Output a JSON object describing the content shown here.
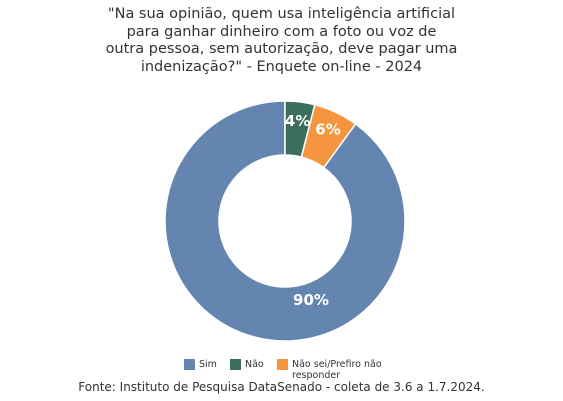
{
  "title_lines": [
    "\"Na sua opinião, quem usa inteligência artificial",
    "para ganhar dinheiro com a foto ou voz de",
    "outra pessoa, sem autorização, deve pagar uma",
    "indenização?\" - Enquete on-line - 2024"
  ],
  "source": "Fonte: Instituto de Pesquisa DataSenado - coleta de 3.6 a 1.7.2024.",
  "chart_data": {
    "type": "pie",
    "donut": true,
    "title": "\"Na sua opinião, quem usa inteligência artificial para ganhar dinheiro com a foto ou voz de outra pessoa, sem autorização, deve pagar uma indenização?\" - Enquete on-line - 2024",
    "categories": [
      "Sim",
      "Não",
      "Não sei/Prefiro não responder"
    ],
    "values": [
      90,
      4,
      6
    ],
    "value_labels": [
      "90%",
      "4%",
      "6%"
    ],
    "colors": [
      "#6585b1",
      "#3c6e5e",
      "#f5953f"
    ],
    "legend_position": "bottom"
  }
}
